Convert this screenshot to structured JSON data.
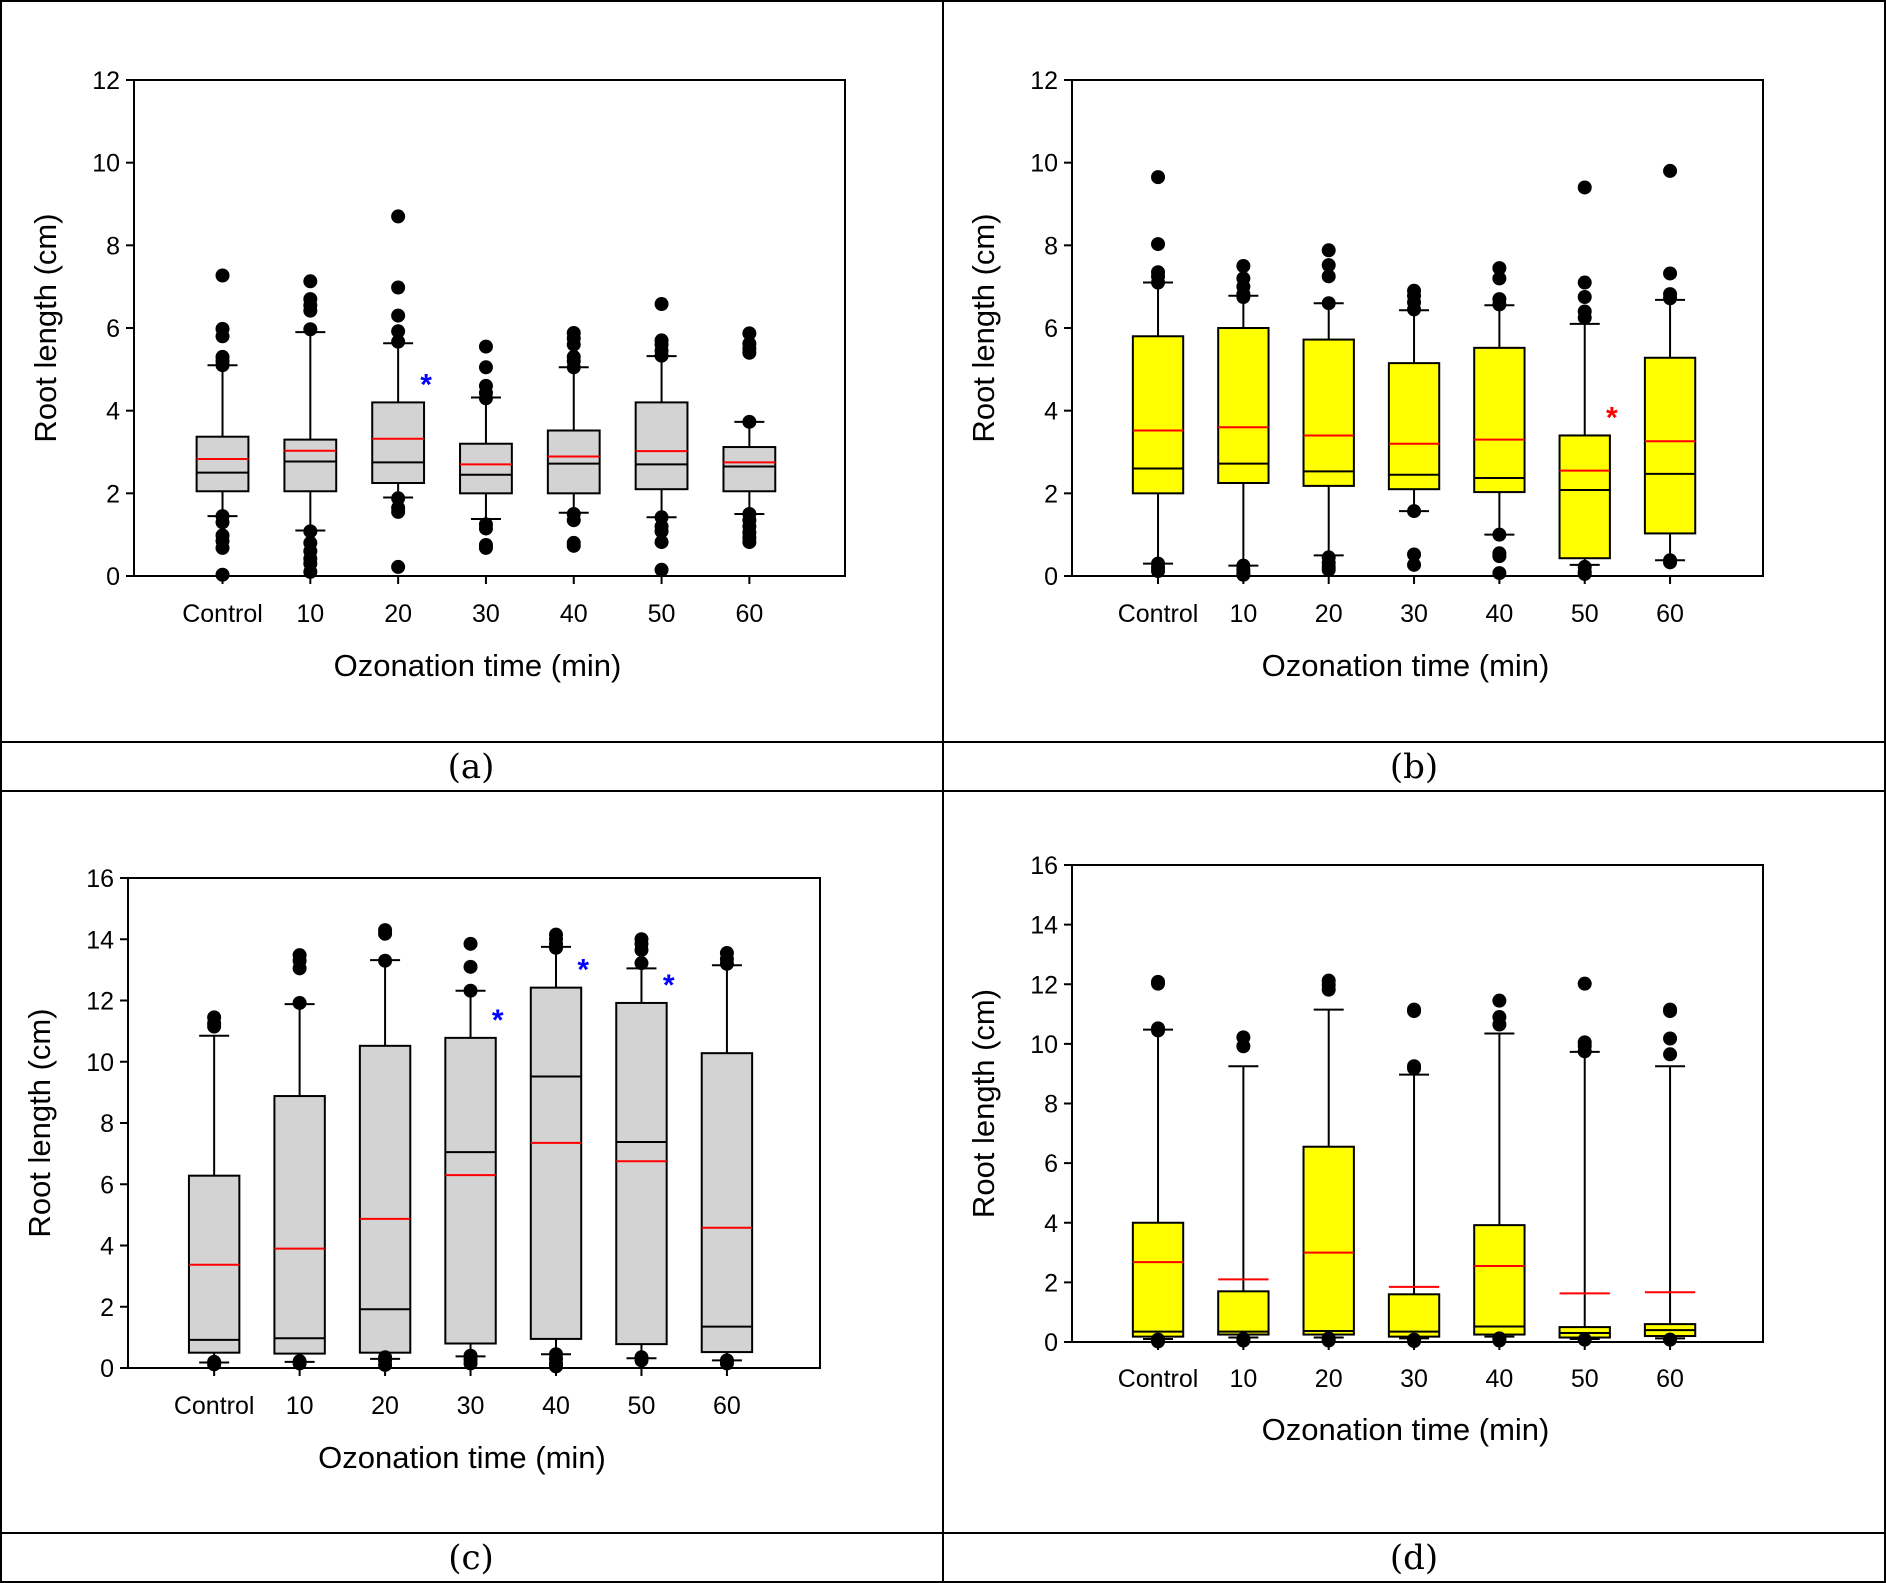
{
  "figure": {
    "captions": [
      "(a)",
      "(b)",
      "(c)",
      "(d)"
    ]
  },
  "colors": {
    "gray_fill": "#d3d3d3",
    "yellow_fill": "#ffff00",
    "mean_line": "#ff0000",
    "median_line": "#000000",
    "blue_star": "#0000ff",
    "red_star": "#ff0000"
  },
  "chart_data": [
    {
      "id": "a",
      "type": "box",
      "caption": "(a)",
      "xlabel": "Ozonation time (min)",
      "ylabel": "Root length (cm)",
      "ylim": [
        0,
        12
      ],
      "yticks": [
        0,
        2,
        4,
        6,
        8,
        10,
        12
      ],
      "categories": [
        "Control",
        "10",
        "20",
        "30",
        "40",
        "50",
        "60"
      ],
      "fill": "#d3d3d3",
      "legend": "none",
      "grid": false,
      "boxes": [
        {
          "q1": 2.05,
          "median": 2.5,
          "q3": 3.37,
          "mean": 2.83,
          "whisker_low": 1.45,
          "whisker_high": 5.1,
          "outliers": [
            7.27,
            5.98,
            5.8,
            5.3,
            5.2,
            5.1,
            1.45,
            1.3,
            0.98,
            0.85,
            0.68,
            0.03
          ]
        },
        {
          "q1": 2.05,
          "median": 2.77,
          "q3": 3.3,
          "mean": 3.03,
          "whisker_low": 1.1,
          "whisker_high": 5.9,
          "outliers": [
            7.13,
            6.7,
            6.55,
            6.42,
            5.97,
            1.08,
            0.8,
            0.6,
            0.42,
            0.3,
            0.1
          ]
        },
        {
          "q1": 2.25,
          "median": 2.75,
          "q3": 4.2,
          "mean": 3.32,
          "whisker_low": 1.9,
          "whisker_high": 5.63,
          "outliers": [
            8.7,
            6.98,
            6.3,
            5.92,
            5.67,
            1.88,
            1.65,
            1.55,
            0.22
          ],
          "significance": {
            "symbol": "*",
            "color": "#0000ff"
          }
        },
        {
          "q1": 2.0,
          "median": 2.45,
          "q3": 3.2,
          "mean": 2.7,
          "whisker_low": 1.38,
          "whisker_high": 4.32,
          "outliers": [
            5.55,
            5.05,
            4.6,
            4.43,
            4.3,
            1.25,
            1.15,
            0.75,
            0.68
          ]
        },
        {
          "q1": 2.0,
          "median": 2.72,
          "q3": 3.52,
          "mean": 2.89,
          "whisker_low": 1.53,
          "whisker_high": 5.05,
          "outliers": [
            5.88,
            5.75,
            5.6,
            5.3,
            5.2,
            5.05,
            1.5,
            1.35,
            0.8,
            0.73
          ]
        },
        {
          "q1": 2.1,
          "median": 2.7,
          "q3": 4.2,
          "mean": 3.02,
          "whisker_low": 1.42,
          "whisker_high": 5.32,
          "outliers": [
            6.58,
            5.7,
            5.6,
            5.45,
            5.33,
            1.42,
            1.2,
            1.08,
            0.82,
            0.15
          ]
        },
        {
          "q1": 2.05,
          "median": 2.65,
          "q3": 3.12,
          "mean": 2.75,
          "whisker_low": 1.5,
          "whisker_high": 3.73,
          "outliers": [
            5.87,
            5.62,
            5.5,
            5.4,
            3.73,
            1.5,
            1.35,
            1.2,
            1.05,
            0.93,
            0.82
          ]
        }
      ]
    },
    {
      "id": "b",
      "type": "box",
      "caption": "(b)",
      "xlabel": "Ozonation time (min)",
      "ylabel": "Root length (cm)",
      "ylim": [
        0,
        12
      ],
      "yticks": [
        0,
        2,
        4,
        6,
        8,
        10,
        12
      ],
      "categories": [
        "Control",
        "10",
        "20",
        "30",
        "40",
        "50",
        "60"
      ],
      "fill": "#ffff00",
      "legend": "none",
      "grid": false,
      "boxes": [
        {
          "q1": 2.0,
          "median": 2.6,
          "q3": 5.8,
          "mean": 3.52,
          "whisker_low": 0.3,
          "whisker_high": 7.1,
          "outliers": [
            9.65,
            8.03,
            7.35,
            7.25,
            7.1,
            0.3,
            0.2,
            0.12
          ]
        },
        {
          "q1": 2.25,
          "median": 2.72,
          "q3": 6.0,
          "mean": 3.6,
          "whisker_low": 0.25,
          "whisker_high": 6.78,
          "outliers": [
            7.5,
            7.2,
            7.0,
            6.82,
            6.75,
            0.25,
            0.15,
            0.08,
            0.03
          ]
        },
        {
          "q1": 2.18,
          "median": 2.53,
          "q3": 5.72,
          "mean": 3.4,
          "whisker_low": 0.5,
          "whisker_high": 6.6,
          "outliers": [
            7.88,
            7.52,
            7.25,
            6.6,
            0.45,
            0.32,
            0.22,
            0.15
          ]
        },
        {
          "q1": 2.1,
          "median": 2.45,
          "q3": 5.15,
          "mean": 3.2,
          "whisker_low": 1.57,
          "whisker_high": 6.43,
          "outliers": [
            6.9,
            6.78,
            6.62,
            6.45,
            1.57,
            0.52,
            0.27
          ]
        },
        {
          "q1": 2.03,
          "median": 2.37,
          "q3": 5.52,
          "mean": 3.3,
          "whisker_low": 1.0,
          "whisker_high": 6.55,
          "outliers": [
            7.45,
            7.2,
            6.7,
            6.57,
            1.0,
            0.55,
            0.48,
            0.07
          ]
        },
        {
          "q1": 0.43,
          "median": 2.08,
          "q3": 3.4,
          "mean": 2.55,
          "whisker_low": 0.27,
          "whisker_high": 6.1,
          "outliers": [
            9.4,
            7.1,
            6.75,
            6.4,
            6.25,
            0.22,
            0.1,
            0.05
          ],
          "significance": {
            "symbol": "*",
            "color": "#ff0000"
          }
        },
        {
          "q1": 1.03,
          "median": 2.47,
          "q3": 5.28,
          "mean": 3.26,
          "whisker_low": 0.38,
          "whisker_high": 6.68,
          "outliers": [
            9.8,
            7.32,
            6.82,
            6.72,
            0.38,
            0.33
          ]
        }
      ]
    },
    {
      "id": "c",
      "type": "box",
      "caption": "(c)",
      "xlabel": "Ozonation time (min)",
      "ylabel": "Root length (cm)",
      "ylim": [
        0,
        16
      ],
      "yticks": [
        0,
        2,
        4,
        6,
        8,
        10,
        12,
        14,
        16
      ],
      "categories": [
        "Control",
        "10",
        "20",
        "30",
        "40",
        "50",
        "60"
      ],
      "fill": "#d3d3d3",
      "legend": "none",
      "grid": false,
      "boxes": [
        {
          "q1": 0.5,
          "median": 0.92,
          "q3": 6.28,
          "mean": 3.37,
          "whisker_low": 0.18,
          "whisker_high": 10.85,
          "outliers": [
            11.45,
            11.25,
            11.15,
            0.2,
            0.12
          ]
        },
        {
          "q1": 0.47,
          "median": 0.97,
          "q3": 8.88,
          "mean": 3.9,
          "whisker_low": 0.2,
          "whisker_high": 11.88,
          "outliers": [
            13.48,
            13.3,
            13.05,
            11.92,
            0.22,
            0.15
          ]
        },
        {
          "q1": 0.5,
          "median": 1.92,
          "q3": 10.52,
          "mean": 4.87,
          "whisker_low": 0.3,
          "whisker_high": 13.32,
          "outliers": [
            14.3,
            14.18,
            13.3,
            0.35,
            0.25,
            0.1
          ]
        },
        {
          "q1": 0.8,
          "median": 7.05,
          "q3": 10.78,
          "mean": 6.3,
          "whisker_low": 0.38,
          "whisker_high": 12.32,
          "outliers": [
            13.85,
            13.1,
            12.32,
            0.4,
            0.28,
            0.15
          ],
          "significance": {
            "symbol": "*",
            "color": "#0000ff"
          }
        },
        {
          "q1": 0.95,
          "median": 9.52,
          "q3": 12.42,
          "mean": 7.35,
          "whisker_low": 0.45,
          "whisker_high": 13.75,
          "outliers": [
            14.15,
            14.0,
            13.85,
            13.72,
            0.45,
            0.3,
            0.15,
            0.05
          ],
          "significance": {
            "symbol": "*",
            "color": "#0000ff"
          }
        },
        {
          "q1": 0.78,
          "median": 7.38,
          "q3": 11.92,
          "mean": 6.75,
          "whisker_low": 0.32,
          "whisker_high": 13.05,
          "outliers": [
            14.0,
            13.85,
            13.65,
            13.22,
            0.35,
            0.25
          ],
          "significance": {
            "symbol": "*",
            "color": "#0000ff"
          }
        },
        {
          "q1": 0.52,
          "median": 1.35,
          "q3": 10.28,
          "mean": 4.58,
          "whisker_low": 0.25,
          "whisker_high": 13.15,
          "outliers": [
            13.55,
            13.35,
            13.2,
            0.25,
            0.15
          ]
        }
      ]
    },
    {
      "id": "d",
      "type": "box",
      "caption": "(d)",
      "xlabel": "Ozonation time (min)",
      "ylabel": "Root length (cm)",
      "ylim": [
        0,
        16
      ],
      "yticks": [
        0,
        2,
        4,
        6,
        8,
        10,
        12,
        14,
        16
      ],
      "categories": [
        "Control",
        "10",
        "20",
        "30",
        "40",
        "50",
        "60"
      ],
      "fill": "#ffff00",
      "legend": "none",
      "grid": false,
      "boxes": [
        {
          "q1": 0.18,
          "median": 0.35,
          "q3": 4.0,
          "mean": 2.68,
          "whisker_low": 0.1,
          "whisker_high": 10.48,
          "outliers": [
            12.08,
            12.02,
            10.52,
            10.45,
            0.08,
            0.02
          ]
        },
        {
          "q1": 0.25,
          "median": 0.35,
          "q3": 1.7,
          "mean": 2.1,
          "whisker_low": 0.15,
          "whisker_high": 9.25,
          "outliers": [
            10.22,
            9.92,
            0.1,
            0.05
          ]
        },
        {
          "q1": 0.25,
          "median": 0.37,
          "q3": 6.55,
          "mean": 3.0,
          "whisker_low": 0.15,
          "whisker_high": 11.15,
          "outliers": [
            12.12,
            11.98,
            11.82,
            0.12,
            0.05
          ]
        },
        {
          "q1": 0.18,
          "median": 0.35,
          "q3": 1.6,
          "mean": 1.85,
          "whisker_low": 0.12,
          "whisker_high": 8.97,
          "outliers": [
            11.15,
            11.1,
            9.25,
            9.18,
            0.08,
            0.03
          ]
        },
        {
          "q1": 0.25,
          "median": 0.52,
          "q3": 3.92,
          "mean": 2.55,
          "whisker_low": 0.18,
          "whisker_high": 10.35,
          "outliers": [
            11.45,
            10.9,
            10.65,
            0.12,
            0.05
          ]
        },
        {
          "q1": 0.15,
          "median": 0.3,
          "q3": 0.5,
          "mean": 1.63,
          "whisker_low": 0.1,
          "whisker_high": 9.73,
          "outliers": [
            12.02,
            10.05,
            9.93,
            9.75,
            0.08
          ]
        },
        {
          "q1": 0.2,
          "median": 0.4,
          "q3": 0.6,
          "mean": 1.67,
          "whisker_low": 0.12,
          "whisker_high": 9.25,
          "outliers": [
            11.15,
            11.1,
            10.18,
            9.65,
            0.08
          ]
        }
      ]
    }
  ]
}
